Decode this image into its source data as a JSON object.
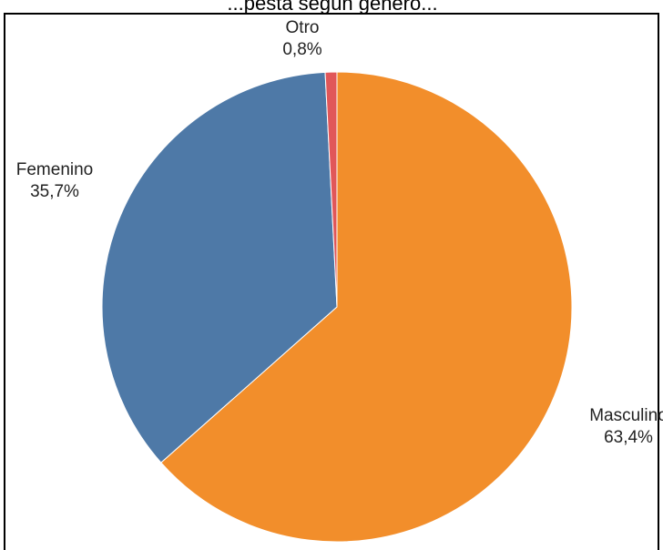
{
  "header_fragment": "...pesta según género...",
  "chart_data": {
    "type": "pie",
    "title": "",
    "slices": [
      {
        "label": "Masculino",
        "value": 63.4,
        "value_label": "63,4%",
        "color": "#F28E2B"
      },
      {
        "label": "Femenino",
        "value": 35.7,
        "value_label": "35,7%",
        "color": "#4E79A7"
      },
      {
        "label": "Otro",
        "value": 0.8,
        "value_label": "0,8%",
        "color": "#E15759"
      }
    ],
    "start": "12 o'clock",
    "direction": "clockwise",
    "legend": "none (direct labels outside slices)"
  }
}
